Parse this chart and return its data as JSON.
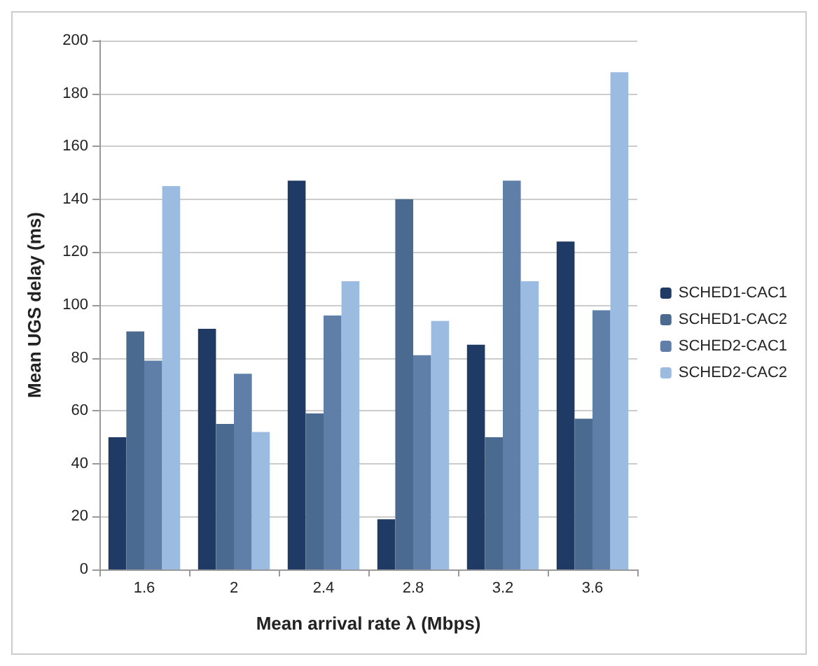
{
  "chart_data": {
    "type": "bar",
    "xlabel": "Mean arrival rate λ (Mbps)",
    "ylabel": "Mean UGS delay (ms)",
    "categories": [
      "1.6",
      "2",
      "2.4",
      "2.8",
      "3.2",
      "3.6"
    ],
    "series": [
      {
        "name": "SCHED1-CAC1",
        "color": "#1f3a64",
        "values": [
          50,
          91,
          147,
          19,
          85,
          124
        ]
      },
      {
        "name": "SCHED1-CAC2",
        "color": "#4a6a90",
        "values": [
          90,
          55,
          59,
          140,
          50,
          57
        ]
      },
      {
        "name": "SCHED2-CAC1",
        "color": "#5f7fa8",
        "values": [
          79,
          74,
          96,
          81,
          147,
          98
        ]
      },
      {
        "name": "SCHED2-CAC2",
        "color": "#9bbbe0",
        "values": [
          145,
          52,
          109,
          94,
          109,
          188
        ]
      }
    ],
    "ylim": [
      0,
      200
    ],
    "yticks": [
      0,
      20,
      40,
      60,
      80,
      100,
      120,
      140,
      160,
      180,
      200
    ],
    "grid": "y",
    "legend": "right"
  }
}
